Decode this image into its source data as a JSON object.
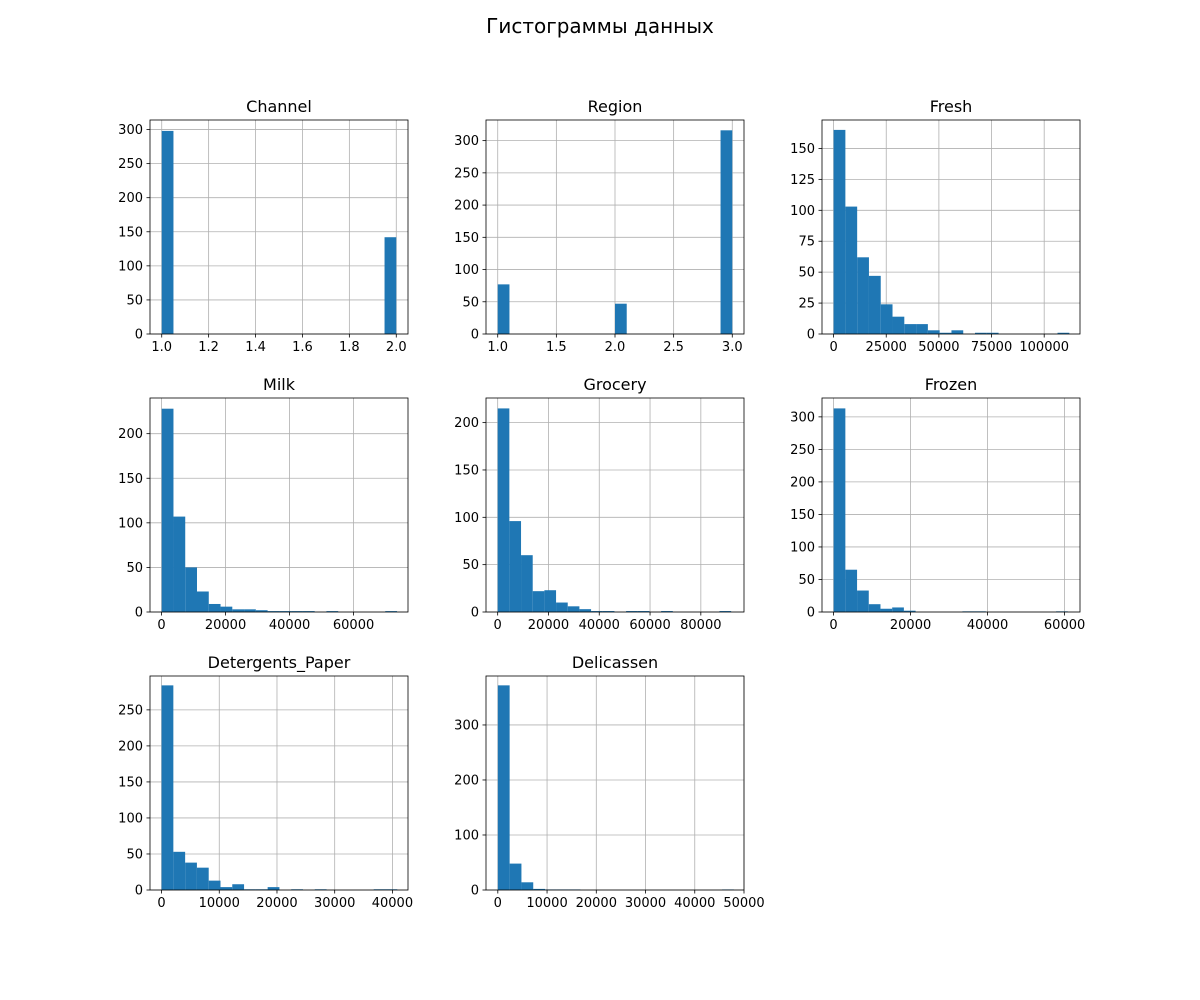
{
  "figure": {
    "title": "Гистограммы данных",
    "bar_color": "#1f77b4",
    "grid": true
  },
  "chart_data": [
    {
      "type": "bar",
      "title": "Channel",
      "xlim": [
        0.95,
        2.05
      ],
      "ylim": [
        0,
        314
      ],
      "bins": [
        1.0,
        1.05,
        1.1,
        1.15,
        1.2,
        1.25,
        1.3,
        1.35,
        1.4,
        1.45,
        1.5,
        1.55,
        1.6,
        1.65,
        1.7,
        1.75,
        1.8,
        1.85,
        1.9,
        1.95,
        2.0
      ],
      "counts": [
        298,
        0,
        0,
        0,
        0,
        0,
        0,
        0,
        0,
        0,
        0,
        0,
        0,
        0,
        0,
        0,
        0,
        0,
        0,
        142
      ],
      "xticks": [
        1.0,
        1.2,
        1.4,
        1.6,
        1.8,
        2.0
      ],
      "xtick_labels": [
        "1.0",
        "1.2",
        "1.4",
        "1.6",
        "1.8",
        "2.0"
      ],
      "yticks": [
        0,
        50,
        100,
        150,
        200,
        250,
        300
      ],
      "ytick_labels": [
        "0",
        "50",
        "100",
        "150",
        "200",
        "250",
        "300"
      ]
    },
    {
      "type": "bar",
      "title": "Region",
      "xlim": [
        0.9,
        3.1
      ],
      "ylim": [
        0,
        332
      ],
      "bins": [
        1.0,
        1.1,
        1.2,
        1.3,
        1.4,
        1.5,
        1.6,
        1.7,
        1.8,
        1.9,
        2.0,
        2.1,
        2.2,
        2.3,
        2.4,
        2.5,
        2.6,
        2.7,
        2.8,
        2.9,
        3.0
      ],
      "counts": [
        77,
        0,
        0,
        0,
        0,
        0,
        0,
        0,
        0,
        0,
        47,
        0,
        0,
        0,
        0,
        0,
        0,
        0,
        0,
        316
      ],
      "xticks": [
        1.0,
        1.5,
        2.0,
        2.5,
        3.0
      ],
      "xtick_labels": [
        "1.0",
        "1.5",
        "2.0",
        "2.5",
        "3.0"
      ],
      "yticks": [
        0,
        50,
        100,
        150,
        200,
        250,
        300
      ],
      "ytick_labels": [
        "0",
        "50",
        "100",
        "150",
        "200",
        "250",
        "300"
      ]
    },
    {
      "type": "bar",
      "title": "Fresh",
      "xlim": [
        -5500,
        117000
      ],
      "ylim": [
        0,
        173
      ],
      "bins": [
        3,
        5599,
        11195,
        16791,
        22387,
        27983,
        33579,
        39175,
        44771,
        50367,
        55963,
        61559,
        67155,
        72751,
        78347,
        83943,
        89539,
        95135,
        100731,
        106327,
        111923
      ],
      "counts": [
        165,
        103,
        62,
        47,
        24,
        14,
        8,
        8,
        3,
        1,
        3,
        0,
        1,
        1,
        0,
        0,
        0,
        0,
        0,
        1
      ],
      "xticks": [
        0,
        25000,
        50000,
        75000,
        100000
      ],
      "xtick_labels": [
        "0",
        "25000",
        "50000",
        "75000",
        "100000"
      ],
      "yticks": [
        0,
        25,
        50,
        75,
        100,
        125,
        150
      ],
      "ytick_labels": [
        "0",
        "25",
        "50",
        "75",
        "100",
        "125",
        "150"
      ]
    },
    {
      "type": "bar",
      "title": "Milk",
      "xlim": [
        -3600,
        77000
      ],
      "ylim": [
        0,
        240
      ],
      "bins": [
        55,
        3731,
        7407,
        11083,
        14759,
        18435,
        22111,
        25787,
        29463,
        33139,
        36815,
        40491,
        44167,
        47843,
        51519,
        55195,
        58871,
        62547,
        66223,
        69899,
        73575
      ],
      "counts": [
        228,
        107,
        50,
        23,
        9,
        6,
        3,
        3,
        2,
        1,
        1,
        1,
        1,
        0,
        1,
        0,
        0,
        0,
        0,
        1
      ],
      "xticks": [
        0,
        20000,
        40000,
        60000
      ],
      "xtick_labels": [
        "0",
        "20000",
        "40000",
        "60000"
      ],
      "yticks": [
        0,
        50,
        100,
        150,
        200
      ],
      "ytick_labels": [
        "0",
        "50",
        "100",
        "150",
        "200"
      ]
    },
    {
      "type": "bar",
      "title": "Grocery",
      "xlim": [
        -4600,
        97000
      ],
      "ylim": [
        0,
        226
      ],
      "bins": [
        3,
        4600,
        9197,
        13794,
        18391,
        22988,
        27585,
        32182,
        36779,
        41376,
        45973,
        50570,
        55167,
        59764,
        64361,
        68958,
        73555,
        78152,
        82749,
        87346,
        91943
      ],
      "counts": [
        215,
        96,
        60,
        22,
        23,
        10,
        6,
        3,
        1,
        1,
        0,
        1,
        1,
        0,
        1,
        0,
        0,
        0,
        0,
        1
      ],
      "xticks": [
        0,
        20000,
        40000,
        60000,
        80000
      ],
      "xtick_labels": [
        "0",
        "20000",
        "40000",
        "60000",
        "80000"
      ],
      "yticks": [
        0,
        50,
        100,
        150,
        200
      ],
      "ytick_labels": [
        "0",
        "50",
        "100",
        "150",
        "200"
      ]
    },
    {
      "type": "bar",
      "title": "Frozen",
      "xlim": [
        -3000,
        64000
      ],
      "ylim": [
        0,
        329
      ],
      "bins": [
        25,
        3065,
        6105,
        9145,
        12185,
        15225,
        18265,
        21305,
        24345,
        27385,
        30425,
        33465,
        36505,
        39545,
        42585,
        45625,
        48665,
        51705,
        54745,
        57785,
        60825
      ],
      "counts": [
        313,
        65,
        33,
        12,
        5,
        7,
        2,
        0,
        0,
        0,
        0,
        1,
        1,
        0,
        0,
        0,
        0,
        0,
        0,
        1
      ],
      "xticks": [
        0,
        20000,
        40000,
        60000
      ],
      "xtick_labels": [
        "0",
        "20000",
        "40000",
        "60000"
      ],
      "yticks": [
        0,
        50,
        100,
        150,
        200,
        250,
        300
      ],
      "ytick_labels": [
        "0",
        "50",
        "100",
        "150",
        "200",
        "250",
        "300"
      ]
    },
    {
      "type": "bar",
      "title": "Detergents_Paper",
      "xlim": [
        -2000,
        42700
      ],
      "ylim": [
        0,
        297
      ],
      "bins": [
        3,
        2045,
        4087,
        6129,
        8171,
        10213,
        12255,
        14297,
        16339,
        18381,
        20423,
        22465,
        24507,
        26549,
        28591,
        30633,
        32675,
        34717,
        36759,
        38801,
        40843
      ],
      "counts": [
        284,
        53,
        38,
        31,
        13,
        4,
        8,
        1,
        1,
        4,
        0,
        1,
        0,
        1,
        0,
        0,
        0,
        0,
        1,
        1
      ],
      "xticks": [
        0,
        10000,
        20000,
        30000,
        40000
      ],
      "xtick_labels": [
        "0",
        "10000",
        "20000",
        "30000",
        "40000"
      ],
      "yticks": [
        0,
        50,
        100,
        150,
        200,
        250
      ],
      "ytick_labels": [
        "0",
        "50",
        "100",
        "150",
        "200",
        "250"
      ]
    },
    {
      "type": "bar",
      "title": "Delicassen",
      "xlim": [
        -2400,
        50000
      ],
      "ylim": [
        0,
        389
      ],
      "bins": [
        3,
        2400,
        4797,
        7194,
        9591,
        11988,
        14385,
        16782,
        19179,
        21576,
        23973,
        26370,
        28767,
        31164,
        33561,
        35958,
        38355,
        40752,
        43149,
        45546,
        47943
      ],
      "counts": [
        372,
        48,
        14,
        2,
        1,
        1,
        1,
        0,
        0,
        0,
        0,
        0,
        0,
        0,
        0,
        0,
        0,
        0,
        0,
        1
      ],
      "xticks": [
        0,
        10000,
        20000,
        30000,
        40000,
        50000
      ],
      "xtick_labels": [
        "0",
        "10000",
        "20000",
        "30000",
        "40000",
        "50000"
      ],
      "yticks": [
        0,
        100,
        200,
        300
      ],
      "ytick_labels": [
        "0",
        "100",
        "200",
        "300"
      ]
    }
  ]
}
